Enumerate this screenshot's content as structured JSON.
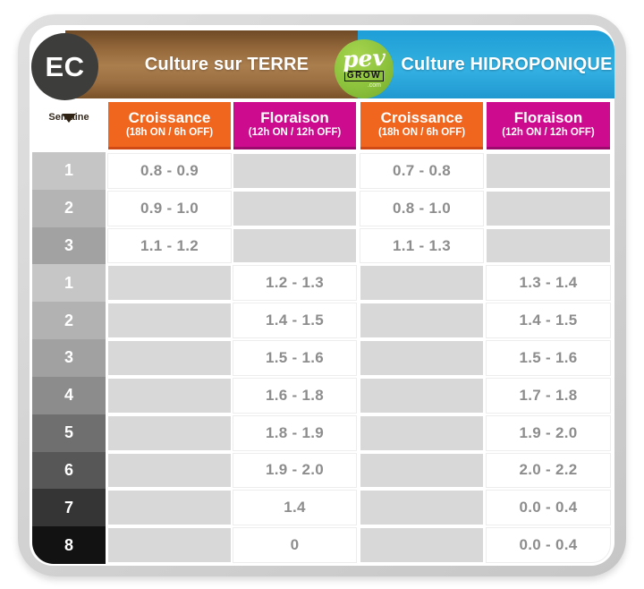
{
  "header": {
    "ec_label": "EC",
    "terre_title": "Culture sur TERRE",
    "hydro_title": "Culture HIDROPONIQUE",
    "logo": {
      "pev": "pev",
      "grow": "GROW",
      "com": ".com"
    },
    "week_label": "Semaine",
    "columns": [
      {
        "label": "Croissance",
        "sub": "(18h ON / 6h OFF)"
      },
      {
        "label": "Floraison",
        "sub": "(12h ON / 12h OFF)"
      },
      {
        "label": "Croissance",
        "sub": "(18h ON / 6h OFF)"
      },
      {
        "label": "Floraison",
        "sub": "(12h ON / 12h OFF)"
      }
    ]
  },
  "chart_data": {
    "type": "table",
    "title": "EC",
    "sections": [
      "Culture sur TERRE",
      "Culture HIDROPONIQUE"
    ],
    "week_column": "Semaine",
    "phases": {
      "croissance": "18h ON / 6h OFF",
      "floraison": "12h ON / 12h OFF"
    },
    "rows": [
      {
        "week": "1",
        "phase": "croissance",
        "terre_croissance": "0.8 - 0.9",
        "terre_floraison": "",
        "hydro_croissance": "0.7 - 0.8",
        "hydro_floraison": ""
      },
      {
        "week": "2",
        "phase": "croissance",
        "terre_croissance": "0.9 - 1.0",
        "terre_floraison": "",
        "hydro_croissance": "0.8 - 1.0",
        "hydro_floraison": ""
      },
      {
        "week": "3",
        "phase": "croissance",
        "terre_croissance": "1.1 - 1.2",
        "terre_floraison": "",
        "hydro_croissance": "1.1 - 1.3",
        "hydro_floraison": ""
      },
      {
        "week": "1",
        "phase": "floraison",
        "terre_croissance": "",
        "terre_floraison": "1.2 - 1.3",
        "hydro_croissance": "",
        "hydro_floraison": "1.3 - 1.4"
      },
      {
        "week": "2",
        "phase": "floraison",
        "terre_croissance": "",
        "terre_floraison": "1.4 - 1.5",
        "hydro_croissance": "",
        "hydro_floraison": "1.4 - 1.5"
      },
      {
        "week": "3",
        "phase": "floraison",
        "terre_croissance": "",
        "terre_floraison": "1.5 - 1.6",
        "hydro_croissance": "",
        "hydro_floraison": "1.5 - 1.6"
      },
      {
        "week": "4",
        "phase": "floraison",
        "terre_croissance": "",
        "terre_floraison": "1.6 - 1.8",
        "hydro_croissance": "",
        "hydro_floraison": "1.7 - 1.8"
      },
      {
        "week": "5",
        "phase": "floraison",
        "terre_croissance": "",
        "terre_floraison": "1.8 - 1.9",
        "hydro_croissance": "",
        "hydro_floraison": "1.9 - 2.0"
      },
      {
        "week": "6",
        "phase": "floraison",
        "terre_croissance": "",
        "terre_floraison": "1.9 - 2.0",
        "hydro_croissance": "",
        "hydro_floraison": "2.0 - 2.2"
      },
      {
        "week": "7",
        "phase": "floraison",
        "terre_croissance": "",
        "terre_floraison": "1.4",
        "hydro_croissance": "",
        "hydro_floraison": "0.0 - 0.4"
      },
      {
        "week": "8",
        "phase": "floraison",
        "terre_croissance": "",
        "terre_floraison": "0",
        "hydro_croissance": "",
        "hydro_floraison": "0.0 - 0.4"
      }
    ]
  },
  "colors": {
    "terre_brown": "#9a6f40",
    "hydro_blue": "#2aa8dd",
    "croissance_orange": "#f1661f",
    "floraison_magenta": "#cc0b8e",
    "ec_circle_gray": "#3d3d3b",
    "logo_green": "#8cc23c",
    "empty_cell_gray": "#d8d8d8",
    "value_text_gray": "#8d8d8d",
    "week_shades": [
      "#c5c5c5",
      "#b4b4b4",
      "#a2a2a2",
      "#c6c6c6",
      "#b2b2b2",
      "#a1a1a1",
      "#8c8c8c",
      "#6f6f6f",
      "#575757",
      "#353535",
      "#121212"
    ]
  }
}
